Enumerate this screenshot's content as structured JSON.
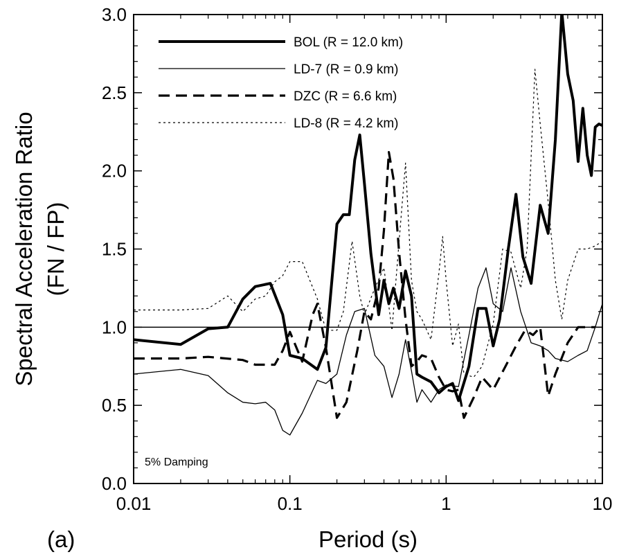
{
  "chart_data": {
    "type": "line",
    "panel_label": "(a)",
    "xlabel": "Period (s)",
    "ylabel_lines": [
      "Spectral Acceleration Ratio",
      "(FN / FP)"
    ],
    "xscale": "log",
    "xlim": [
      0.01,
      10
    ],
    "ylim": [
      0.0,
      3.0
    ],
    "x_ticks": [
      0.01,
      0.1,
      1,
      10
    ],
    "x_tick_labels": [
      "0.01",
      "0.1",
      "1",
      "10"
    ],
    "y_ticks": [
      0.0,
      0.5,
      1.0,
      1.5,
      2.0,
      2.5,
      3.0
    ],
    "y_tick_labels": [
      "0.0",
      "0.5",
      "1.0",
      "1.5",
      "2.0",
      "2.5",
      "3.0"
    ],
    "reference_line": 1.0,
    "grid": false,
    "legend_position": "top-left",
    "annotation": "5% Damping",
    "series": [
      {
        "name": "BOL (R = 12.0 km)",
        "style": "thick-solid",
        "x": [
          0.01,
          0.02,
          0.03,
          0.04,
          0.05,
          0.06,
          0.075,
          0.09,
          0.1,
          0.12,
          0.15,
          0.17,
          0.2,
          0.22,
          0.24,
          0.26,
          0.28,
          0.3,
          0.33,
          0.37,
          0.4,
          0.43,
          0.46,
          0.5,
          0.55,
          0.6,
          0.65,
          0.7,
          0.8,
          0.9,
          1.0,
          1.1,
          1.2,
          1.4,
          1.6,
          1.8,
          2.0,
          2.2,
          2.5,
          2.8,
          3.1,
          3.5,
          4.0,
          4.5,
          5.0,
          5.5,
          6.0,
          6.5,
          7.0,
          7.5,
          8.0,
          8.5,
          9.0,
          9.5,
          10.0
        ],
        "y": [
          0.92,
          0.89,
          0.99,
          1.0,
          1.18,
          1.26,
          1.28,
          1.08,
          0.82,
          0.8,
          0.73,
          0.87,
          1.66,
          1.72,
          1.72,
          2.07,
          2.23,
          1.92,
          1.47,
          1.08,
          1.3,
          1.15,
          1.25,
          1.12,
          1.36,
          1.2,
          0.7,
          0.68,
          0.65,
          0.58,
          0.62,
          0.64,
          0.53,
          0.75,
          1.12,
          1.12,
          0.88,
          1.05,
          1.5,
          1.85,
          1.45,
          1.28,
          1.78,
          1.6,
          2.2,
          3.02,
          2.62,
          2.45,
          2.06,
          2.4,
          2.1,
          1.97,
          2.28,
          2.3,
          2.29
        ]
      },
      {
        "name": "LD-7 (R = 0.9 km)",
        "style": "thin-solid",
        "x": [
          0.01,
          0.02,
          0.03,
          0.04,
          0.05,
          0.06,
          0.07,
          0.08,
          0.09,
          0.1,
          0.12,
          0.15,
          0.17,
          0.2,
          0.23,
          0.26,
          0.3,
          0.35,
          0.4,
          0.45,
          0.5,
          0.55,
          0.6,
          0.65,
          0.7,
          0.8,
          0.9,
          1.0,
          1.2,
          1.4,
          1.6,
          1.8,
          2.0,
          2.3,
          2.6,
          3.0,
          3.5,
          4.0,
          4.5,
          5.0,
          6.0,
          7.0,
          8.0,
          9.0,
          10.0
        ],
        "y": [
          0.7,
          0.73,
          0.69,
          0.58,
          0.52,
          0.51,
          0.52,
          0.47,
          0.34,
          0.31,
          0.45,
          0.66,
          0.64,
          0.7,
          0.95,
          1.1,
          1.12,
          0.82,
          0.75,
          0.55,
          0.7,
          0.92,
          0.72,
          0.52,
          0.6,
          0.52,
          0.6,
          0.63,
          0.62,
          0.95,
          1.25,
          1.38,
          1.15,
          1.1,
          1.38,
          1.1,
          0.9,
          0.88,
          0.85,
          0.8,
          0.78,
          0.82,
          0.85,
          1.0,
          1.15
        ]
      },
      {
        "name": "DZC (R = 6.6 km)",
        "style": "dashed",
        "x": [
          0.01,
          0.02,
          0.03,
          0.05,
          0.06,
          0.08,
          0.09,
          0.1,
          0.12,
          0.14,
          0.15,
          0.17,
          0.2,
          0.23,
          0.27,
          0.3,
          0.33,
          0.37,
          0.4,
          0.43,
          0.46,
          0.5,
          0.55,
          0.6,
          0.65,
          0.7,
          0.8,
          0.9,
          1.0,
          1.1,
          1.2,
          1.3,
          1.5,
          1.7,
          2.0,
          2.4,
          2.8,
          3.2,
          3.6,
          4.0,
          4.5,
          5.0,
          6.0,
          7.0,
          8.0,
          9.0
        ],
        "y": [
          0.8,
          0.8,
          0.81,
          0.79,
          0.76,
          0.76,
          0.85,
          0.97,
          0.78,
          1.08,
          1.15,
          0.87,
          0.42,
          0.52,
          0.85,
          1.1,
          1.05,
          1.25,
          1.62,
          2.12,
          1.95,
          1.48,
          1.05,
          0.75,
          0.78,
          0.82,
          0.8,
          0.68,
          0.6,
          0.59,
          0.6,
          0.42,
          0.55,
          0.68,
          0.6,
          0.75,
          0.88,
          0.98,
          0.95,
          1.0,
          0.56,
          0.7,
          0.9,
          1.0,
          1.0,
          1.0
        ]
      },
      {
        "name": "LD-8 (R = 4.2 km)",
        "style": "dotted",
        "x": [
          0.01,
          0.02,
          0.03,
          0.04,
          0.05,
          0.06,
          0.07,
          0.08,
          0.09,
          0.1,
          0.12,
          0.15,
          0.17,
          0.2,
          0.22,
          0.25,
          0.28,
          0.3,
          0.35,
          0.4,
          0.45,
          0.5,
          0.55,
          0.6,
          0.65,
          0.7,
          0.8,
          0.9,
          0.95,
          1.0,
          1.1,
          1.2,
          1.3,
          1.5,
          1.7,
          2.0,
          2.3,
          2.6,
          3.0,
          3.3,
          3.7,
          4.0,
          4.5,
          5.0,
          5.5,
          6.0,
          7.0,
          8.0,
          9.0,
          10.0
        ],
        "y": [
          1.11,
          1.11,
          1.12,
          1.2,
          1.1,
          1.18,
          1.2,
          1.29,
          1.33,
          1.42,
          1.42,
          1.18,
          0.98,
          0.98,
          1.1,
          1.55,
          1.2,
          1.08,
          1.25,
          1.38,
          0.98,
          1.55,
          2.05,
          1.3,
          1.1,
          1.05,
          0.92,
          1.35,
          1.58,
          1.3,
          0.88,
          1.02,
          0.7,
          0.68,
          0.75,
          1.02,
          1.5,
          1.48,
          1.25,
          1.5,
          2.65,
          2.3,
          1.8,
          1.3,
          1.05,
          1.3,
          1.5,
          1.5,
          1.52,
          1.55
        ]
      }
    ]
  }
}
